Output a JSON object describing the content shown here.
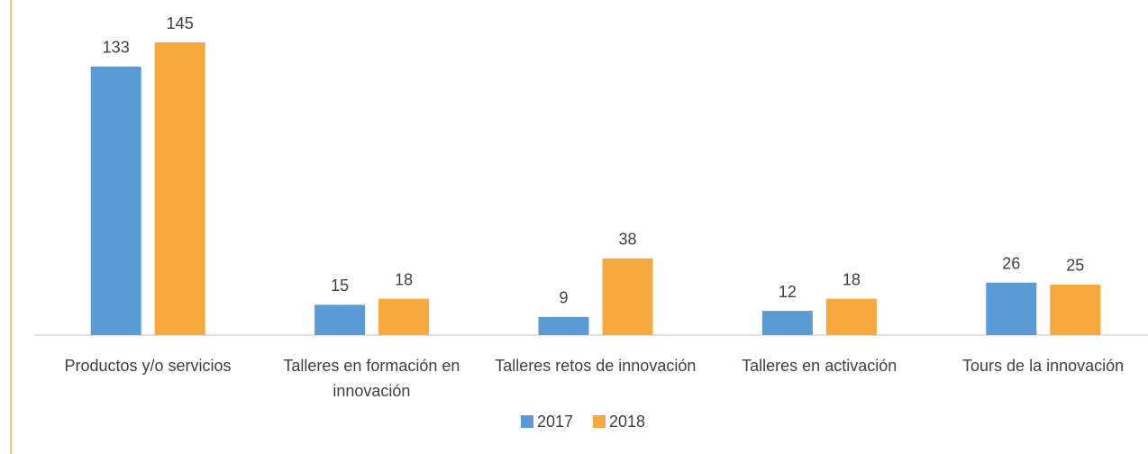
{
  "chart_data": {
    "type": "bar",
    "categories": [
      "Productos y/o servicios",
      "Talleres en formación en innovación",
      "Talleres retos de innovación",
      "Talleres en activación",
      "Tours de la innovación"
    ],
    "series": [
      {
        "name": "2017",
        "color": "#5b9bd5",
        "values": [
          133,
          15,
          9,
          12,
          26
        ]
      },
      {
        "name": "2018",
        "color": "#f5a83c",
        "values": [
          145,
          18,
          38,
          18,
          25
        ]
      }
    ]
  }
}
